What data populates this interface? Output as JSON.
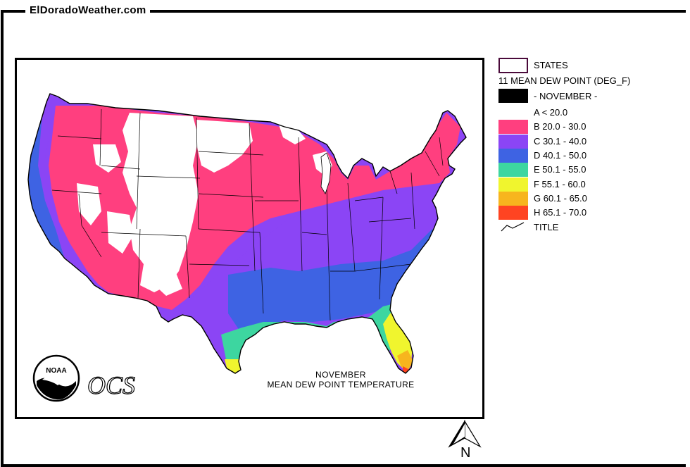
{
  "site": {
    "title": "ElDoradoWeather.com"
  },
  "map": {
    "caption_line1": "NOVEMBER",
    "caption_line2": "MEAN DEW POINT TEMPERATURE",
    "logo_text": "NOAA",
    "logo_mark": "OCS"
  },
  "legend": {
    "states_label": "STATES",
    "variable_label": "11 MEAN DEW POINT (DEG_F)",
    "month_label": "- NOVEMBER -",
    "title_label": "TITLE",
    "classes": [
      {
        "label": "A < 20.0",
        "color": "#ffffff"
      },
      {
        "label": "B 20.0 - 30.0",
        "color": "#ff3f7f"
      },
      {
        "label": "C 30.1 - 40.0",
        "color": "#8b45f5"
      },
      {
        "label": "D 40.1 - 50.0",
        "color": "#3e63e3"
      },
      {
        "label": "E 50.1 - 55.0",
        "color": "#3dd6a0"
      },
      {
        "label": "F 55.1 - 60.0",
        "color": "#f0f52e"
      },
      {
        "label": "G 60.1 - 65.0",
        "color": "#f7b51e"
      },
      {
        "label": "H 65.1 - 70.0",
        "color": "#ff4422"
      }
    ]
  },
  "compass": {
    "label": "N"
  }
}
